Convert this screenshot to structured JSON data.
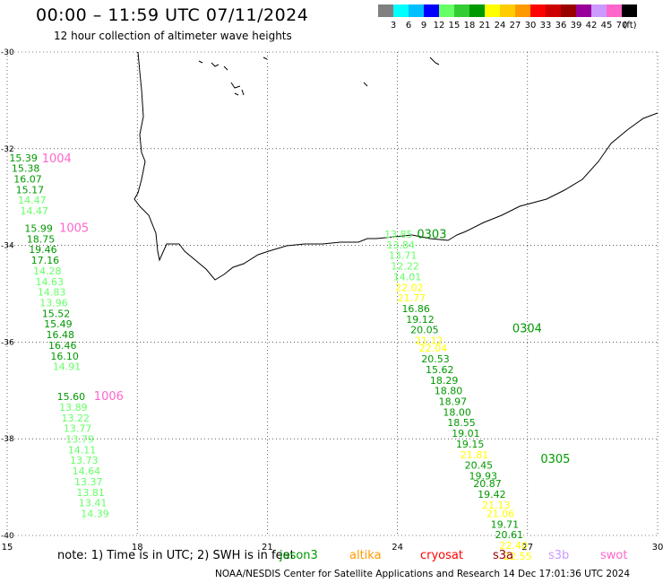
{
  "title": "00:00 – 11:59 UTC 07/11/2024",
  "subtitle": "12 hour collection of altimeter wave heights",
  "colorbar": {
    "unit": "(ft)",
    "ticks": [
      "3",
      "6",
      "9",
      "12",
      "15",
      "18",
      "21",
      "24",
      "27",
      "30",
      "33",
      "36",
      "39",
      "42",
      "45",
      "70"
    ],
    "colors": [
      "#808080",
      "#00ffff",
      "#00bfff",
      "#0000ff",
      "#66ff66",
      "#33cc33",
      "#009900",
      "#ffff00",
      "#ffcc00",
      "#ff9900",
      "#ff0000",
      "#cc0000",
      "#990000",
      "#990099",
      "#cc99ff",
      "#ff66cc",
      "#000000"
    ]
  },
  "map": {
    "lon_range": [
      15,
      30
    ],
    "lat_range": [
      -40,
      -30
    ],
    "x_ticks": [
      "15",
      "18",
      "21",
      "24",
      "27",
      "30"
    ],
    "y_ticks": [
      "-30",
      "-32",
      "-34",
      "-36",
      "-38",
      "-40"
    ]
  },
  "tracks": [
    {
      "id": "1004",
      "label_color": "#ff66cc",
      "label_lon": 15.8,
      "label_lat": -32.28
    },
    {
      "id": "1005",
      "label_color": "#ff66cc",
      "label_lon": 16.2,
      "label_lat": -33.72
    },
    {
      "id": "1006",
      "label_color": "#ff66cc",
      "label_lon": 17.0,
      "label_lat": -37.2
    },
    {
      "id": "0303",
      "label_color": "#009900",
      "label_lon": 24.45,
      "label_lat": -33.85
    },
    {
      "id": "0304",
      "label_color": "#009900",
      "label_lon": 26.65,
      "label_lat": -35.8
    },
    {
      "id": "0305",
      "label_color": "#009900",
      "label_lon": 27.3,
      "label_lat": -38.5
    }
  ],
  "observations": [
    {
      "v": "15.39",
      "lon": 15.05,
      "lat": -32.26,
      "c": "#009900"
    },
    {
      "v": "15.38",
      "lon": 15.1,
      "lat": -32.48,
      "c": "#009900"
    },
    {
      "v": "16.07",
      "lon": 15.15,
      "lat": -32.7,
      "c": "#009900"
    },
    {
      "v": "15.17",
      "lon": 15.2,
      "lat": -32.92,
      "c": "#009900"
    },
    {
      "v": "14.47",
      "lon": 15.25,
      "lat": -33.14,
      "c": "#66ff66"
    },
    {
      "v": "14.47",
      "lon": 15.3,
      "lat": -33.36,
      "c": "#66ff66"
    },
    {
      "v": "15.99",
      "lon": 15.4,
      "lat": -33.72,
      "c": "#009900"
    },
    {
      "v": "18.75",
      "lon": 15.45,
      "lat": -33.94,
      "c": "#009900"
    },
    {
      "v": "19.46",
      "lon": 15.5,
      "lat": -34.16,
      "c": "#009900"
    },
    {
      "v": "17.16",
      "lon": 15.55,
      "lat": -34.38,
      "c": "#009900"
    },
    {
      "v": "14.28",
      "lon": 15.6,
      "lat": -34.6,
      "c": "#66ff66"
    },
    {
      "v": "14.63",
      "lon": 15.65,
      "lat": -34.82,
      "c": "#66ff66"
    },
    {
      "v": "14.83",
      "lon": 15.7,
      "lat": -35.04,
      "c": "#66ff66"
    },
    {
      "v": "13.96",
      "lon": 15.75,
      "lat": -35.26,
      "c": "#66ff66"
    },
    {
      "v": "15.52",
      "lon": 15.8,
      "lat": -35.48,
      "c": "#009900"
    },
    {
      "v": "15.49",
      "lon": 15.85,
      "lat": -35.7,
      "c": "#009900"
    },
    {
      "v": "16.48",
      "lon": 15.9,
      "lat": -35.92,
      "c": "#009900"
    },
    {
      "v": "16.46",
      "lon": 15.95,
      "lat": -36.14,
      "c": "#009900"
    },
    {
      "v": "16.10",
      "lon": 16.0,
      "lat": -36.36,
      "c": "#009900"
    },
    {
      "v": "14.91",
      "lon": 16.05,
      "lat": -36.58,
      "c": "#66ff66"
    },
    {
      "v": "15.60",
      "lon": 16.15,
      "lat": -37.2,
      "c": "#009900"
    },
    {
      "v": "13.89",
      "lon": 16.2,
      "lat": -37.42,
      "c": "#66ff66"
    },
    {
      "v": "13.22",
      "lon": 16.25,
      "lat": -37.64,
      "c": "#66ff66"
    },
    {
      "v": "13.77",
      "lon": 16.3,
      "lat": -37.86,
      "c": "#66ff66"
    },
    {
      "v": "13.79",
      "lon": 16.35,
      "lat": -38.08,
      "c": "#66ff66"
    },
    {
      "v": "14.11",
      "lon": 16.4,
      "lat": -38.3,
      "c": "#66ff66"
    },
    {
      "v": "13.73",
      "lon": 16.45,
      "lat": -38.52,
      "c": "#66ff66"
    },
    {
      "v": "14.64",
      "lon": 16.5,
      "lat": -38.74,
      "c": "#66ff66"
    },
    {
      "v": "13.37",
      "lon": 16.55,
      "lat": -38.96,
      "c": "#66ff66"
    },
    {
      "v": "13.81",
      "lon": 16.6,
      "lat": -39.18,
      "c": "#66ff66"
    },
    {
      "v": "13.41",
      "lon": 16.65,
      "lat": -39.4,
      "c": "#66ff66"
    },
    {
      "v": "14.39",
      "lon": 16.7,
      "lat": -39.62,
      "c": "#66ff66"
    },
    {
      "v": "13.85",
      "lon": 23.7,
      "lat": -33.84,
      "c": "#66ff66"
    },
    {
      "v": "13.84",
      "lon": 23.75,
      "lat": -34.06,
      "c": "#66ff66"
    },
    {
      "v": "13.71",
      "lon": 23.8,
      "lat": -34.28,
      "c": "#66ff66"
    },
    {
      "v": "12.22",
      "lon": 23.85,
      "lat": -34.5,
      "c": "#66ff66"
    },
    {
      "v": "14.01",
      "lon": 23.9,
      "lat": -34.72,
      "c": "#66ff66"
    },
    {
      "v": "22.02",
      "lon": 23.95,
      "lat": -34.94,
      "c": "#ffff00"
    },
    {
      "v": "21.77",
      "lon": 24.0,
      "lat": -35.16,
      "c": "#ffff00"
    },
    {
      "v": "16.86",
      "lon": 24.1,
      "lat": -35.38,
      "c": "#009900"
    },
    {
      "v": "19.12",
      "lon": 24.2,
      "lat": -35.6,
      "c": "#009900"
    },
    {
      "v": "20.05",
      "lon": 24.3,
      "lat": -35.82,
      "c": "#009900"
    },
    {
      "v": "21.12",
      "lon": 24.4,
      "lat": -36.04,
      "c": "#ffff00"
    },
    {
      "v": "22.04",
      "lon": 24.5,
      "lat": -36.2,
      "c": "#ffff00"
    },
    {
      "v": "20.53",
      "lon": 24.55,
      "lat": -36.42,
      "c": "#009900"
    },
    {
      "v": "15.62",
      "lon": 24.65,
      "lat": -36.64,
      "c": "#009900"
    },
    {
      "v": "18.29",
      "lon": 24.75,
      "lat": -36.86,
      "c": "#009900"
    },
    {
      "v": "18.80",
      "lon": 24.85,
      "lat": -37.08,
      "c": "#009900"
    },
    {
      "v": "18.97",
      "lon": 24.95,
      "lat": -37.3,
      "c": "#009900"
    },
    {
      "v": "18.00",
      "lon": 25.05,
      "lat": -37.52,
      "c": "#009900"
    },
    {
      "v": "18.55",
      "lon": 25.15,
      "lat": -37.74,
      "c": "#009900"
    },
    {
      "v": "19.01",
      "lon": 25.25,
      "lat": -37.96,
      "c": "#009900"
    },
    {
      "v": "19.15",
      "lon": 25.35,
      "lat": -38.18,
      "c": "#009900"
    },
    {
      "v": "21.81",
      "lon": 25.45,
      "lat": -38.4,
      "c": "#ffff00"
    },
    {
      "v": "20.45",
      "lon": 25.55,
      "lat": -38.62,
      "c": "#009900"
    },
    {
      "v": "19.93",
      "lon": 25.65,
      "lat": -38.84,
      "c": "#009900"
    },
    {
      "v": "20.87",
      "lon": 25.75,
      "lat": -39.0,
      "c": "#009900"
    },
    {
      "v": "19.42",
      "lon": 25.85,
      "lat": -39.22,
      "c": "#009900"
    },
    {
      "v": "21.13",
      "lon": 25.95,
      "lat": -39.44,
      "c": "#ffff00"
    },
    {
      "v": "21.06",
      "lon": 26.05,
      "lat": -39.62,
      "c": "#ffff00"
    },
    {
      "v": "19.71",
      "lon": 26.15,
      "lat": -39.84,
      "c": "#009900"
    },
    {
      "v": "20.61",
      "lon": 26.25,
      "lat": -40.06,
      "c": "#009900"
    },
    {
      "v": "22.40",
      "lon": 26.35,
      "lat": -40.28,
      "c": "#ffff00"
    },
    {
      "v": "22.55",
      "lon": 26.45,
      "lat": -40.5,
      "c": "#ffff00"
    }
  ],
  "footer": {
    "note": "note:  1) Time is in UTC; 2) SWH is in feet",
    "satellites": [
      {
        "name": "jason3",
        "color": "#009900"
      },
      {
        "name": "altika",
        "color": "#ff9900"
      },
      {
        "name": "cryosat",
        "color": "#ff0000"
      },
      {
        "name": "s3a",
        "color": "#990000"
      },
      {
        "name": "s3b",
        "color": "#cc99ff"
      },
      {
        "name": "swot",
        "color": "#ff66cc"
      }
    ],
    "credit": "NOAA/NESDIS Center for Satellite Applications and Research     14 Dec 17:01:36 UTC 2024"
  }
}
